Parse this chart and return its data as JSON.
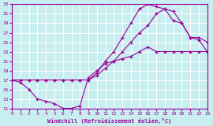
{
  "xlabel": "Windchill (Refroidissement éolien,°C)",
  "bg_color": "#c8eef0",
  "line_color": "#990099",
  "grid_color": "#ffffff",
  "xmin": 0,
  "xmax": 23,
  "ymin": 11,
  "ymax": 33,
  "yticks": [
    11,
    13,
    15,
    17,
    19,
    21,
    23,
    25,
    27,
    29,
    31,
    33
  ],
  "xticks": [
    0,
    1,
    2,
    3,
    4,
    5,
    6,
    7,
    8,
    9,
    10,
    11,
    12,
    13,
    14,
    15,
    16,
    17,
    18,
    19,
    20,
    21,
    22,
    23
  ],
  "line1_x": [
    0,
    1,
    2,
    3,
    4,
    5,
    6,
    7,
    8,
    9,
    10,
    11,
    12,
    13,
    14,
    15,
    16,
    17,
    18,
    19,
    20,
    21,
    22,
    23
  ],
  "line1_y": [
    17,
    16.5,
    15,
    13,
    12.5,
    12,
    11,
    11,
    11.5,
    17.5,
    19,
    20.5,
    21,
    21.5,
    22,
    23,
    24,
    23,
    23,
    23,
    23,
    23,
    23,
    23
  ],
  "line2_x": [
    0,
    1,
    2,
    3,
    4,
    5,
    6,
    7,
    8,
    9,
    10,
    11,
    12,
    13,
    14,
    15,
    16,
    17,
    18,
    19,
    20,
    21,
    22,
    23
  ],
  "line2_y": [
    17,
    17,
    17,
    17,
    17,
    17,
    17,
    17,
    17,
    17,
    18,
    19.5,
    21,
    23,
    25,
    27,
    28.5,
    31,
    32,
    29.5,
    29,
    26,
    25.5,
    23
  ],
  "line3_x": [
    0,
    1,
    2,
    3,
    4,
    5,
    6,
    7,
    8,
    9,
    10,
    11,
    12,
    13,
    14,
    15,
    16,
    17,
    18,
    19,
    20,
    21,
    22,
    23
  ],
  "line3_y": [
    17,
    17,
    17,
    17,
    17,
    17,
    17,
    17,
    17,
    17,
    18.5,
    21,
    23,
    26,
    29,
    32,
    33,
    32.5,
    32,
    31.5,
    29,
    26,
    26,
    25
  ]
}
